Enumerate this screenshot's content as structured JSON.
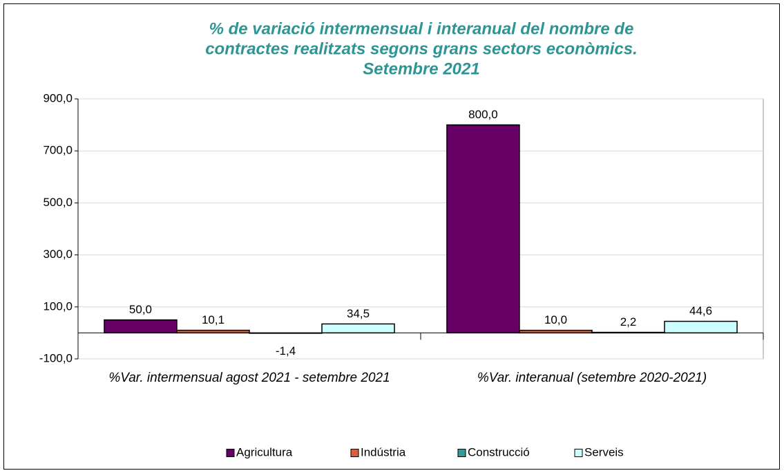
{
  "chart_data": {
    "type": "bar",
    "title": [
      "% de variació intermensual i interanual del nombre de",
      "contractes realitzats segons grans sectors econòmics.",
      "Setembre 2021"
    ],
    "categories": [
      "%Var. intermensual agost 2021 - setembre 2021",
      "%Var. interanual (setembre 2020-2021)"
    ],
    "series": [
      {
        "name": "Agricultura",
        "color": "#660066",
        "values": [
          50.0,
          800.0
        ],
        "value_labels": [
          "50,0",
          "800,0"
        ]
      },
      {
        "name": "Indústria",
        "color": "#d9603b",
        "values": [
          10.1,
          10.0
        ],
        "value_labels": [
          "10,1",
          "10,0"
        ]
      },
      {
        "name": "Construcció",
        "color": "#339999",
        "values": [
          -1.4,
          2.2
        ],
        "value_labels": [
          "-1,4",
          "2,2"
        ]
      },
      {
        "name": "Serveis",
        "color": "#ccffff",
        "values": [
          34.5,
          44.6
        ],
        "value_labels": [
          "34,5",
          "44,6"
        ]
      }
    ],
    "ylim": [
      -100,
      900
    ],
    "yticks": [
      {
        "value": -100,
        "label": "-100,0"
      },
      {
        "value": 100,
        "label": "100,0"
      },
      {
        "value": 300,
        "label": "300,0"
      },
      {
        "value": 500,
        "label": "500,0"
      },
      {
        "value": 700,
        "label": "700,0"
      },
      {
        "value": 900,
        "label": "900,0"
      }
    ],
    "grid": true,
    "legend": "bottom"
  }
}
